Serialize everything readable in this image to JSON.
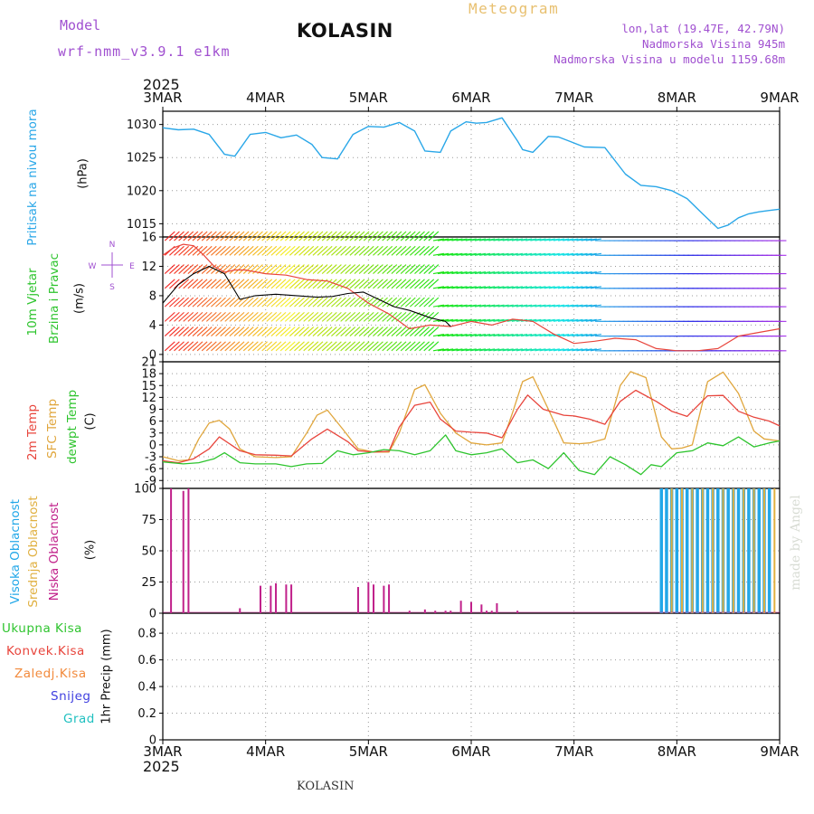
{
  "header": {
    "model_label": "Model",
    "model_name": "wrf-nmm_v3.9.1 e1km",
    "station": "KOLASIN",
    "product": "Meteogram",
    "lonlat": "lon,lat (19.47E, 42.79N)",
    "elevation": "Nadmorska Visina 945m",
    "model_elevation": "Nadmorska Visina u modelu 1159.68m"
  },
  "footer": {
    "station": "KOLASIN",
    "credit": "made by Angel"
  },
  "time_axis": {
    "year": "2025",
    "labels": [
      "3MAR",
      "4MAR",
      "5MAR",
      "6MAR",
      "7MAR",
      "8MAR",
      "9MAR"
    ],
    "range_days": [
      0,
      6
    ]
  },
  "colors": {
    "pressure": "#2aa7e8",
    "temp2m": "#e8453c",
    "sfc_temp": "#e0a63c",
    "dewpt": "#2ec42e",
    "cloud_high": "#22a7e8",
    "cloud_mid": "#e0b040",
    "cloud_low": "#c0208a",
    "precip_total": "#2ec42e",
    "precip_conv": "#e8453c",
    "precip_snow_ice": "#f28a3c",
    "precip_snow": "#4040e0",
    "precip_grad": "#20c0c0",
    "model_text": "#a050d0",
    "product_text": "#e8c070"
  },
  "chart_data": [
    {
      "type": "line",
      "panel": "pressure",
      "ylabel": "(hPa)",
      "side_title": "Pritisak na nivou mora",
      "ylim": [
        1013,
        1032
      ],
      "yticks": [
        1015,
        1020,
        1025,
        1030
      ],
      "grid": true,
      "series": [
        {
          "name": "Pritisak na nivou mora",
          "x": [
            0,
            0.15,
            0.3,
            0.45,
            0.6,
            0.7,
            0.85,
            1.0,
            1.15,
            1.3,
            1.45,
            1.55,
            1.7,
            1.85,
            2.0,
            2.15,
            2.3,
            2.45,
            2.55,
            2.7,
            2.8,
            2.95,
            3.05,
            3.15,
            3.3,
            3.45,
            3.5,
            3.6,
            3.75,
            3.85,
            3.95,
            4.1,
            4.3,
            4.5,
            4.65,
            4.8,
            4.95,
            5.1,
            5.25,
            5.4,
            5.5,
            5.6,
            5.7,
            5.8,
            5.9,
            6.0
          ],
          "values": [
            1029.5,
            1029.2,
            1029.3,
            1028.5,
            1025.5,
            1025.2,
            1028.5,
            1028.8,
            1028.0,
            1028.4,
            1027.0,
            1025.0,
            1024.8,
            1028.5,
            1029.7,
            1029.6,
            1030.3,
            1029.0,
            1026.0,
            1025.8,
            1029.0,
            1030.4,
            1030.2,
            1030.3,
            1031.0,
            1027.5,
            1026.2,
            1025.8,
            1028.2,
            1028.1,
            1027.5,
            1026.6,
            1026.5,
            1022.5,
            1020.8,
            1020.6,
            1020.0,
            1018.8,
            1016.5,
            1014.3,
            1014.8,
            1015.9,
            1016.5,
            1016.8,
            1017.0,
            1017.2
          ]
        }
      ]
    },
    {
      "type": "line",
      "panel": "wind",
      "ylabel": "(m/s)",
      "side_title": [
        "10m Vjetar",
        "Brzina i Pravac"
      ],
      "compass": [
        "N",
        "W",
        "E",
        "S"
      ],
      "ylim": [
        -1,
        16
      ],
      "yticks": [
        0,
        4,
        8,
        12,
        16
      ],
      "grid": true,
      "series": [
        {
          "name": "10m Vjetar Brzina",
          "x": [
            0,
            0.1,
            0.2,
            0.3,
            0.4,
            0.5,
            0.6,
            0.7,
            0.8,
            1.0,
            1.2,
            1.4,
            1.6,
            1.8,
            2.0,
            2.2,
            2.4,
            2.6,
            2.8,
            3.0,
            3.2,
            3.4,
            3.6,
            3.8,
            4.0,
            4.2,
            4.4,
            4.6,
            4.8,
            5.0,
            5.2,
            5.4,
            5.6,
            5.8,
            6.0
          ],
          "values": [
            13.5,
            14.5,
            15.0,
            14.8,
            13.5,
            12.0,
            11.2,
            11.5,
            11.5,
            11.0,
            10.8,
            10.2,
            10.0,
            9.0,
            7.0,
            5.5,
            3.5,
            4.0,
            3.8,
            4.5,
            4.0,
            4.8,
            4.5,
            2.8,
            1.5,
            1.8,
            2.2,
            2.0,
            0.8,
            0.5,
            0.5,
            0.8,
            2.5,
            3.0,
            3.5
          ]
        },
        {
          "name": "10m Vjetar (crna)",
          "x": [
            0,
            0.15,
            0.3,
            0.45,
            0.6,
            0.75,
            0.9,
            1.1,
            1.3,
            1.5,
            1.65,
            1.8,
            1.95,
            2.1,
            2.25,
            2.4,
            2.5,
            2.6,
            2.75,
            2.8
          ],
          "values": [
            7.0,
            9.5,
            11.0,
            12.0,
            11.0,
            7.5,
            8.0,
            8.2,
            8.0,
            7.8,
            7.9,
            8.3,
            8.5,
            7.5,
            6.5,
            6.0,
            5.5,
            5.0,
            4.5,
            3.8
          ]
        }
      ]
    },
    {
      "type": "line",
      "panel": "temperature",
      "ylabel": "(C)",
      "side_title": [
        "2m Temp",
        "SFC Temp",
        "dewpt Temp"
      ],
      "ylim": [
        -11,
        21
      ],
      "yticks": [
        -9,
        -6,
        -3,
        0,
        3,
        6,
        9,
        12,
        15,
        18,
        21
      ],
      "grid": true,
      "series": [
        {
          "name": "2m Temp",
          "x": [
            0,
            0.15,
            0.3,
            0.45,
            0.55,
            0.75,
            0.9,
            1.1,
            1.25,
            1.45,
            1.6,
            1.8,
            1.9,
            2.05,
            2.2,
            2.3,
            2.45,
            2.6,
            2.7,
            2.85,
            3.0,
            3.15,
            3.3,
            3.45,
            3.55,
            3.7,
            3.9,
            4.0,
            4.15,
            4.3,
            4.45,
            4.6,
            4.8,
            4.95,
            5.1,
            5.3,
            5.45,
            5.6,
            5.75,
            5.9,
            6.0
          ],
          "values": [
            -4.0,
            -4.5,
            -3.5,
            -1.0,
            2.0,
            -1.5,
            -2.5,
            -2.6,
            -2.8,
            1.5,
            4.0,
            0.8,
            -1.5,
            -1.8,
            -1.6,
            4.5,
            10.0,
            10.8,
            6.5,
            3.5,
            3.2,
            3.0,
            1.8,
            9.0,
            12.6,
            9.0,
            7.5,
            7.3,
            6.5,
            5.2,
            11.0,
            13.8,
            11.0,
            8.5,
            7.2,
            12.4,
            12.5,
            8.5,
            7.0,
            6.0,
            4.8
          ]
        },
        {
          "name": "SFC Temp",
          "x": [
            0,
            0.15,
            0.25,
            0.35,
            0.45,
            0.55,
            0.65,
            0.75,
            0.9,
            1.1,
            1.25,
            1.4,
            1.5,
            1.6,
            1.75,
            1.9,
            2.05,
            2.2,
            2.3,
            2.45,
            2.55,
            2.7,
            2.85,
            3.0,
            3.15,
            3.3,
            3.4,
            3.5,
            3.6,
            3.75,
            3.9,
            4.05,
            4.15,
            4.3,
            4.45,
            4.55,
            4.7,
            4.85,
            4.95,
            5.05,
            5.15,
            5.3,
            5.45,
            5.6,
            5.75,
            5.85,
            6.0
          ],
          "values": [
            -3.0,
            -4.0,
            -3.8,
            1.5,
            5.5,
            6.2,
            4.0,
            -1.0,
            -3.0,
            -3.2,
            -3.0,
            3.0,
            7.5,
            8.8,
            4.0,
            -1.0,
            -1.8,
            -1.8,
            3.0,
            14.0,
            15.2,
            8.0,
            3.0,
            0.5,
            0.0,
            0.5,
            8.0,
            16.0,
            17.2,
            9.0,
            0.5,
            0.3,
            0.5,
            1.5,
            15.0,
            18.5,
            17.0,
            2.0,
            -1.0,
            -0.8,
            0.0,
            16.0,
            18.4,
            13.0,
            3.5,
            1.5,
            1.0
          ]
        },
        {
          "name": "dewpt Temp",
          "x": [
            0,
            0.2,
            0.35,
            0.5,
            0.6,
            0.75,
            0.9,
            1.1,
            1.25,
            1.4,
            1.55,
            1.7,
            1.85,
            2.0,
            2.15,
            2.3,
            2.45,
            2.6,
            2.75,
            2.85,
            3.0,
            3.15,
            3.3,
            3.45,
            3.6,
            3.75,
            3.9,
            4.05,
            4.2,
            4.35,
            4.5,
            4.65,
            4.75,
            4.85,
            5.0,
            5.15,
            5.3,
            5.45,
            5.6,
            5.75,
            5.9,
            6.0
          ],
          "values": [
            -4.3,
            -4.8,
            -4.5,
            -3.5,
            -2.0,
            -4.5,
            -4.8,
            -4.8,
            -5.5,
            -4.8,
            -4.7,
            -1.5,
            -2.5,
            -2.0,
            -1.2,
            -1.5,
            -2.5,
            -1.5,
            2.5,
            -1.5,
            -2.5,
            -2.0,
            -1.0,
            -4.5,
            -3.8,
            -6.0,
            -2.0,
            -6.5,
            -7.5,
            -3.0,
            -5.0,
            -7.5,
            -5.0,
            -5.5,
            -2.0,
            -1.5,
            0.5,
            -0.2,
            2.0,
            -0.5,
            0.5,
            1.0
          ]
        }
      ]
    },
    {
      "type": "bar",
      "panel": "cloud",
      "ylabel": "(%)",
      "side_title": [
        "Visoka Oblacnost",
        "Srednja Oblacnost",
        "Niska Oblacnost"
      ],
      "ylim": [
        0,
        100
      ],
      "yticks": [
        0,
        25,
        50,
        75,
        100
      ],
      "grid": true,
      "series": [
        {
          "name": "Niska Oblacnost",
          "x": [
            0.08,
            0.2,
            0.25,
            0.75,
            0.95,
            1.05,
            1.1,
            1.2,
            1.25,
            1.9,
            2.0,
            2.05,
            2.15,
            2.2,
            2.4,
            2.55,
            2.65,
            2.75,
            2.8,
            2.9,
            3.0,
            3.1,
            3.15,
            3.2,
            3.25,
            3.45
          ],
          "values": [
            100,
            98,
            100,
            4,
            22,
            22,
            24,
            23,
            23,
            21,
            25,
            23,
            22,
            23,
            2,
            3,
            2,
            2,
            2,
            10,
            9,
            7,
            2,
            2,
            8,
            2
          ]
        },
        {
          "name": "Visoka Oblacnost",
          "x": [
            4.85,
            4.9,
            4.95,
            5.0,
            5.05,
            5.1,
            5.15,
            5.2,
            5.25,
            5.3,
            5.35,
            5.4,
            5.45,
            5.5,
            5.55,
            5.6,
            5.65,
            5.7,
            5.75,
            5.8,
            5.85,
            5.9
          ],
          "values": [
            100,
            100,
            100,
            100,
            100,
            100,
            100,
            100,
            100,
            100,
            100,
            100,
            100,
            100,
            100,
            100,
            100,
            100,
            100,
            100,
            100,
            100
          ]
        },
        {
          "name": "Srednja Oblacnost",
          "x": [
            4.95,
            5.05,
            5.15,
            5.25,
            5.35,
            5.45,
            5.55,
            5.65,
            5.75,
            5.85,
            5.95
          ],
          "values": [
            100,
            100,
            100,
            100,
            100,
            100,
            100,
            100,
            100,
            100,
            100
          ]
        }
      ]
    },
    {
      "type": "bar",
      "panel": "precip",
      "ylabel": "1hr Precip (mm)",
      "legend": [
        "Ukupna Kisa",
        "Konvek.Kisa",
        "Zaledj.Kisa",
        "Snijeg",
        "Grad"
      ],
      "ylim": [
        0,
        0.95
      ],
      "yticks": [
        0,
        0.2,
        0.4,
        0.6,
        0.8
      ],
      "grid": true,
      "series": []
    }
  ]
}
